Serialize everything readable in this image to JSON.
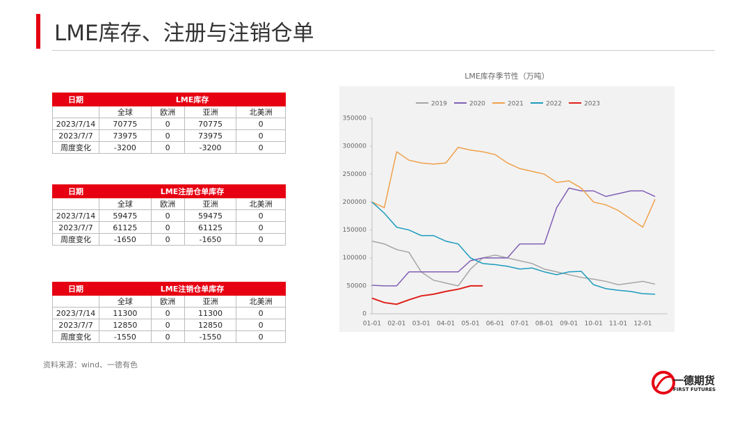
{
  "title": "LME库存、注册与注销仓单",
  "tables": [
    {
      "columns": [
        "日期",
        "LME库存"
      ],
      "subheader": [
        "全球",
        "欧洲",
        "亚洲",
        "北美洲"
      ],
      "rows": [
        [
          "2023/7/14",
          70775,
          0,
          70775,
          0
        ],
        [
          "2023/7/7",
          73975,
          0,
          73975,
          0
        ],
        [
          "周度变化",
          -3200,
          0,
          -3200,
          0
        ]
      ]
    },
    {
      "columns": [
        "日期",
        "LME注册仓单库存"
      ],
      "subheader": [
        "全球",
        "欧洲",
        "亚洲",
        "北美洲"
      ],
      "rows": [
        [
          "2023/7/14",
          59475,
          0,
          59475,
          0
        ],
        [
          "2023/7/7",
          61125,
          0,
          61125,
          0
        ],
        [
          "周度变化",
          -1650,
          0,
          -1650,
          0
        ]
      ]
    },
    {
      "columns": [
        "日期",
        "LME注销仓单库存"
      ],
      "subheader": [
        "全球",
        "欧洲",
        "亚洲",
        "北美洲"
      ],
      "rows": [
        [
          "2023/7/14",
          11300,
          0,
          11300,
          0
        ],
        [
          "2023/7/7",
          12850,
          0,
          12850,
          0
        ],
        [
          "周度变化",
          -1550,
          0,
          -1550,
          0
        ]
      ]
    }
  ],
  "chart_data": {
    "type": "line",
    "title": "LME库存季节性（万吨）",
    "categories": [
      "01-01",
      null,
      "02-01",
      null,
      "03-01",
      null,
      "04-01",
      null,
      "05-01",
      null,
      "06-01",
      null,
      "07-01",
      null,
      "08-01",
      null,
      "09-01",
      null,
      "10-01",
      null,
      "11-01",
      null,
      "12-01",
      null
    ],
    "series": [
      {
        "name": "2019",
        "color": "#a5a5a5",
        "values": [
          130000,
          125000,
          115000,
          110000,
          75000,
          60000,
          55000,
          50000,
          80000,
          100000,
          105000,
          100000,
          95000,
          90000,
          80000,
          75000,
          70000,
          65000,
          62000,
          58000,
          52000,
          55000,
          58000,
          53000
        ]
      },
      {
        "name": "2020",
        "color": "#7f5fb4",
        "values": [
          51000,
          50000,
          50000,
          75000,
          75000,
          75000,
          75000,
          75000,
          95000,
          100000,
          100000,
          100000,
          125000,
          125000,
          125000,
          190000,
          225000,
          220000,
          220000,
          210000,
          215000,
          220000,
          220000,
          210000
        ]
      },
      {
        "name": "2021",
        "color": "#f0a04b",
        "values": [
          200000,
          190000,
          290000,
          275000,
          270000,
          268000,
          270000,
          298000,
          293000,
          290000,
          285000,
          270000,
          260000,
          255000,
          250000,
          235000,
          238000,
          225000,
          200000,
          195000,
          185000,
          170000,
          155000,
          205000
        ]
      },
      {
        "name": "2022",
        "color": "#1a9bbd",
        "values": [
          200000,
          180000,
          155000,
          150000,
          140000,
          140000,
          130000,
          125000,
          100000,
          90000,
          88000,
          85000,
          80000,
          82000,
          75000,
          70000,
          75000,
          76000,
          52000,
          45000,
          42000,
          40000,
          36000,
          35000
        ]
      },
      {
        "name": "2023",
        "color": "#e0201a",
        "values": [
          28000,
          20000,
          17000,
          25000,
          32000,
          35000,
          40000,
          44000,
          50000,
          50000,
          null,
          null,
          null,
          null,
          null,
          null,
          null,
          null,
          null,
          null,
          null,
          null,
          null,
          null
        ]
      }
    ],
    "ylim": [
      0,
      350000
    ],
    "yticks": [
      0,
      50000,
      100000,
      150000,
      200000,
      250000,
      300000,
      350000
    ],
    "grid": false,
    "legend": "top"
  },
  "source": "资料来源：wind、一德有色",
  "logo": {
    "name": "一德期货",
    "sub": "FIRST FUTURES"
  }
}
